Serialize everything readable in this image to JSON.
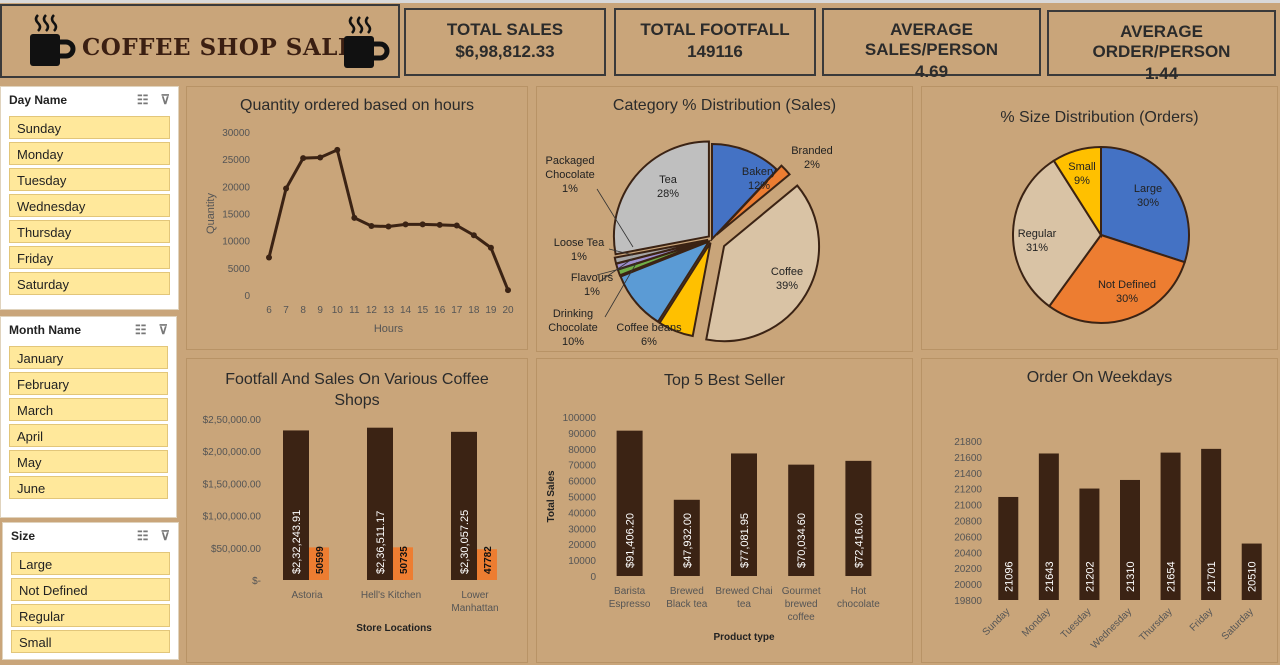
{
  "header": {
    "title": "COFFEE SHOP SALES",
    "kpis": [
      {
        "label": "TOTAL SALES",
        "value": "$6,98,812.33"
      },
      {
        "label": "TOTAL FOOTFALL",
        "value": "149116"
      },
      {
        "label": "AVERAGE SALES/PERSON",
        "value": "4.69"
      },
      {
        "label": "AVERAGE ORDER/PERSON",
        "value": "1.44"
      }
    ]
  },
  "slicers": {
    "day": {
      "label": "Day Name",
      "items": [
        "Sunday",
        "Monday",
        "Tuesday",
        "Wednesday",
        "Thursday",
        "Friday",
        "Saturday"
      ]
    },
    "month": {
      "label": "Month Name",
      "items": [
        "January",
        "February",
        "March",
        "April",
        "May",
        "June"
      ]
    },
    "size": {
      "label": "Size",
      "items": [
        "Large",
        "Not Defined",
        "Regular",
        "Small"
      ]
    }
  },
  "colors": {
    "bar_dark": "#3b2314",
    "bar_orange": "#ed7d31",
    "pie_blue": "#4472c4",
    "pie_gray": "#bfbfbf",
    "pie_gold": "#ffc000",
    "pie_tan": "#d9c3a5",
    "pie_lightblue": "#5b9bd5"
  },
  "chart_data": [
    {
      "type": "line",
      "title": "Quantity ordered based on hours",
      "xlabel": "Hours",
      "ylabel": "Quantity",
      "x": [
        6,
        7,
        8,
        9,
        10,
        11,
        12,
        13,
        14,
        15,
        16,
        17,
        18,
        19,
        20
      ],
      "values": [
        6900,
        19600,
        25200,
        25300,
        26700,
        14200,
        12700,
        12600,
        13000,
        13000,
        12900,
        12800,
        11000,
        8700,
        900
      ],
      "ylim": [
        0,
        30000
      ],
      "yticks": [
        "0",
        "5000",
        "10000",
        "15000",
        "20000",
        "25000",
        "30000"
      ]
    },
    {
      "type": "pie",
      "title": "Category % Distribution (Sales)",
      "slices": [
        {
          "label": "Bakery",
          "pct": "12%",
          "value": 12
        },
        {
          "label": "Branded",
          "pct": "2%",
          "value": 2
        },
        {
          "label": "Coffee",
          "pct": "39%",
          "value": 39
        },
        {
          "label": "Coffee beans",
          "pct": "6%",
          "value": 6
        },
        {
          "label": "Drinking Chocolate",
          "pct": "10%",
          "value": 10
        },
        {
          "label": "Flavours",
          "pct": "1%",
          "value": 1
        },
        {
          "label": "Loose Tea",
          "pct": "1%",
          "value": 1
        },
        {
          "label": "Packaged Chocolate",
          "pct": "1%",
          "value": 1
        },
        {
          "label": "Tea",
          "pct": "28%",
          "value": 28
        }
      ]
    },
    {
      "type": "pie",
      "title": "% Size Distribution (Orders)",
      "slices": [
        {
          "label": "Large",
          "pct": "30%",
          "value": 30
        },
        {
          "label": "Not Defined",
          "pct": "30%",
          "value": 30
        },
        {
          "label": "Regular",
          "pct": "31%",
          "value": 31
        },
        {
          "label": "Small",
          "pct": "9%",
          "value": 9
        }
      ]
    },
    {
      "type": "bar",
      "title": "Footfall And Sales On Various Coffee Shops",
      "xlabel": "Store Locations",
      "categories": [
        "Astoria",
        "Hell's Kitchen",
        "Lower Manhattan"
      ],
      "series": [
        {
          "name": "Sales",
          "values": [
            232243.91,
            236511.17,
            230057.25
          ],
          "labels": [
            "$2,32,243.91",
            "$2,36,511.17",
            "$2,30,057.25"
          ]
        },
        {
          "name": "Footfall",
          "values": [
            50599,
            50735,
            47782
          ],
          "labels": [
            "50599",
            "50735",
            "47782"
          ]
        }
      ],
      "ylim": [
        0,
        250000
      ],
      "yticks": [
        "$-",
        "$50,000.00",
        "$1,00,000.00",
        "$1,50,000.00",
        "$2,00,000.00",
        "$2,50,000.00"
      ]
    },
    {
      "type": "bar",
      "title": "Top 5 Best Seller",
      "xlabel": "Product type",
      "ylabel": "Total Sales",
      "categories": [
        "Barista Espresso",
        "Brewed Black tea",
        "Brewed Chai tea",
        "Gourmet brewed coffee",
        "Hot chocolate"
      ],
      "values": [
        91406.2,
        47932.0,
        77081.95,
        70034.6,
        72416.0
      ],
      "labels": [
        "$91,406.20",
        "$47,932.00",
        "$77,081.95",
        "$70,034.60",
        "$72,416.00"
      ],
      "ylim": [
        0,
        100000
      ],
      "yticks": [
        "0",
        "10000",
        "20000",
        "30000",
        "40000",
        "50000",
        "60000",
        "70000",
        "80000",
        "90000",
        "100000"
      ]
    },
    {
      "type": "bar",
      "title": "Order On Weekdays",
      "categories": [
        "Sunday",
        "Monday",
        "Tuesday",
        "Wednesday",
        "Thursday",
        "Friday",
        "Saturday"
      ],
      "values": [
        21096,
        21643,
        21202,
        21310,
        21654,
        21701,
        20510
      ],
      "labels": [
        "21096",
        "21643",
        "21202",
        "21310",
        "21654",
        "21701",
        "20510"
      ],
      "ylim": [
        19800,
        21800
      ],
      "yticks": [
        "19800",
        "20000",
        "20200",
        "20400",
        "20600",
        "20800",
        "21000",
        "21200",
        "21400",
        "21600",
        "21800"
      ]
    }
  ]
}
